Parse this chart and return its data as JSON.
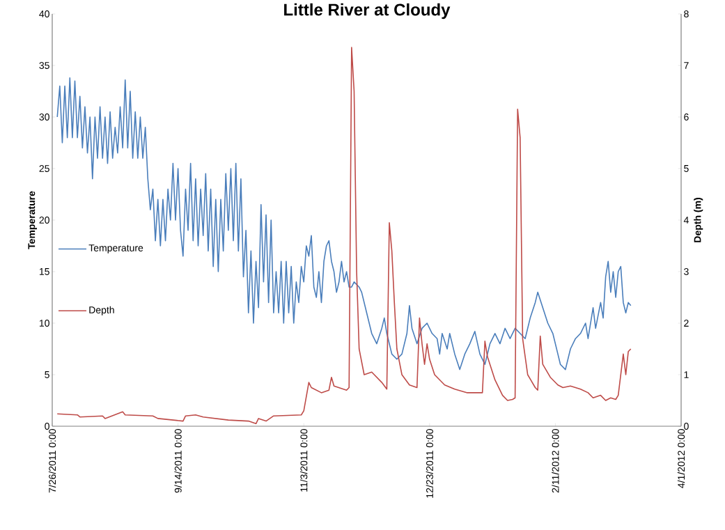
{
  "chart_data": {
    "type": "line",
    "title": "Little River at Cloudy",
    "ylabel": "Temperature",
    "y2label": "Depth (m)",
    "xlim": [
      "2011-07-26",
      "2012-04-01"
    ],
    "xticks": [
      {
        "value": "2011-07-26",
        "label": "7/26/2011 0:00"
      },
      {
        "value": "2011-09-14",
        "label": "9/14/2011 0:00"
      },
      {
        "value": "2011-11-03",
        "label": "11/3/2011 0:00"
      },
      {
        "value": "2011-12-23",
        "label": "12/23/2011 0:00"
      },
      {
        "value": "2012-02-11",
        "label": "2/11/2012 0:00"
      },
      {
        "value": "2012-04-01",
        "label": "4/1/2012 0:00"
      }
    ],
    "ylim": [
      0,
      40
    ],
    "yticks": [
      0,
      5,
      10,
      15,
      20,
      25,
      30,
      35,
      40
    ],
    "y2lim": [
      0,
      8
    ],
    "y2ticks": [
      0,
      1,
      2,
      3,
      4,
      5,
      6,
      7,
      8
    ],
    "legend": "left",
    "series": [
      {
        "name": "Temperature",
        "color": "#4a7ebb",
        "x": [
          "2011-07-28",
          "2011-07-29",
          "2011-07-30",
          "2011-07-31",
          "2011-08-01",
          "2011-08-02",
          "2011-08-03",
          "2011-08-04",
          "2011-08-05",
          "2011-08-06",
          "2011-08-07",
          "2011-08-08",
          "2011-08-09",
          "2011-08-10",
          "2011-08-11",
          "2011-08-12",
          "2011-08-13",
          "2011-08-14",
          "2011-08-15",
          "2011-08-16",
          "2011-08-17",
          "2011-08-18",
          "2011-08-19",
          "2011-08-20",
          "2011-08-21",
          "2011-08-22",
          "2011-08-23",
          "2011-08-24",
          "2011-08-25",
          "2011-08-26",
          "2011-08-27",
          "2011-08-28",
          "2011-08-29",
          "2011-08-30",
          "2011-08-31",
          "2011-09-01",
          "2011-09-02",
          "2011-09-03",
          "2011-09-04",
          "2011-09-05",
          "2011-09-06",
          "2011-09-07",
          "2011-09-08",
          "2011-09-09",
          "2011-09-10",
          "2011-09-11",
          "2011-09-12",
          "2011-09-13",
          "2011-09-14",
          "2011-09-15",
          "2011-09-16",
          "2011-09-17",
          "2011-09-18",
          "2011-09-19",
          "2011-09-20",
          "2011-09-21",
          "2011-09-22",
          "2011-09-23",
          "2011-09-24",
          "2011-09-25",
          "2011-09-26",
          "2011-09-27",
          "2011-09-28",
          "2011-09-29",
          "2011-09-30",
          "2011-10-01",
          "2011-10-02",
          "2011-10-03",
          "2011-10-04",
          "2011-10-05",
          "2011-10-06",
          "2011-10-07",
          "2011-10-08",
          "2011-10-09",
          "2011-10-10",
          "2011-10-11",
          "2011-10-12",
          "2011-10-13",
          "2011-10-14",
          "2011-10-15",
          "2011-10-16",
          "2011-10-17",
          "2011-10-18",
          "2011-10-19",
          "2011-10-20",
          "2011-10-21",
          "2011-10-22",
          "2011-10-23",
          "2011-10-24",
          "2011-10-25",
          "2011-10-26",
          "2011-10-27",
          "2011-10-28",
          "2011-10-29",
          "2011-10-30",
          "2011-10-31",
          "2011-11-01",
          "2011-11-02",
          "2011-11-03",
          "2011-11-04",
          "2011-11-05",
          "2011-11-06",
          "2011-11-07",
          "2011-11-08",
          "2011-11-09",
          "2011-11-10",
          "2011-11-11",
          "2011-11-12",
          "2011-11-13",
          "2011-11-14",
          "2011-11-15",
          "2011-11-16",
          "2011-11-17",
          "2011-11-18",
          "2011-11-19",
          "2011-11-20",
          "2011-11-21",
          "2011-11-22",
          "2011-11-23",
          "2011-11-25",
          "2011-11-26",
          "2011-11-28",
          "2011-11-30",
          "2011-12-02",
          "2011-12-04",
          "2011-12-05",
          "2011-12-06",
          "2011-12-08",
          "2011-12-10",
          "2011-12-12",
          "2011-12-14",
          "2011-12-15",
          "2011-12-16",
          "2011-12-18",
          "2011-12-20",
          "2011-12-22",
          "2011-12-24",
          "2011-12-26",
          "2011-12-27",
          "2011-12-28",
          "2011-12-30",
          "2011-12-31",
          "2012-01-02",
          "2012-01-04",
          "2012-01-06",
          "2012-01-08",
          "2012-01-10",
          "2012-01-12",
          "2012-01-14",
          "2012-01-16",
          "2012-01-18",
          "2012-01-20",
          "2012-01-22",
          "2012-01-24",
          "2012-01-26",
          "2012-01-28",
          "2012-01-30",
          "2012-02-01",
          "2012-02-03",
          "2012-02-04",
          "2012-02-06",
          "2012-02-08",
          "2012-02-10",
          "2012-02-12",
          "2012-02-13",
          "2012-02-15",
          "2012-02-17",
          "2012-02-19",
          "2012-02-21",
          "2012-02-23",
          "2012-02-24",
          "2012-02-26",
          "2012-02-27",
          "2012-02-29",
          "2012-03-01",
          "2012-03-02",
          "2012-03-03",
          "2012-03-04",
          "2012-03-05",
          "2012-03-06",
          "2012-03-07",
          "2012-03-08",
          "2012-03-09",
          "2012-03-10",
          "2012-03-11",
          "2012-03-12"
        ],
        "values": [
          30,
          33,
          27.5,
          33,
          28,
          33.8,
          28,
          33.5,
          28,
          32,
          27,
          31,
          26.5,
          30,
          24,
          30,
          26,
          31,
          26,
          30,
          25.5,
          30.5,
          26,
          29,
          26.5,
          31,
          27,
          33.6,
          27,
          32.5,
          26,
          30.5,
          26,
          30,
          26,
          29,
          24,
          21,
          23,
          18,
          22,
          17.5,
          22,
          18,
          23,
          20,
          25.5,
          20,
          25,
          19,
          16.5,
          23,
          19,
          25.5,
          18,
          24,
          17.5,
          23,
          18.5,
          24.5,
          17,
          23,
          15.5,
          22,
          15,
          22,
          17,
          24.5,
          19,
          25,
          18,
          25.5,
          17,
          24,
          14.5,
          19,
          11,
          17,
          10,
          16,
          11.5,
          21.5,
          14,
          20.5,
          12,
          20,
          11,
          15,
          11,
          16,
          10,
          16,
          11,
          15.5,
          10,
          14,
          12,
          15.5,
          14,
          17.5,
          16.5,
          18.5,
          13.5,
          12.5,
          15,
          12,
          16,
          17.5,
          18,
          16,
          15,
          13,
          14,
          16,
          14,
          15,
          13.5,
          13.5,
          14,
          13.5,
          13,
          11,
          9,
          8,
          9.5,
          10.5,
          9,
          7,
          6.5,
          7,
          9,
          11.7,
          9.5,
          8,
          9.5,
          10,
          9,
          8.5,
          7,
          9,
          7.5,
          9,
          7,
          5.5,
          7,
          8,
          9.2,
          7,
          6,
          8,
          9,
          8,
          9.5,
          8.5,
          9.5,
          9,
          8.5,
          10.5,
          12,
          13,
          11.5,
          10,
          9,
          7,
          6,
          5.5,
          7.5,
          8.5,
          9,
          10,
          8.5,
          11.5,
          9.5,
          12,
          10.5,
          14.5,
          16,
          13,
          15,
          12.5,
          15,
          15.5,
          12,
          11,
          12,
          11.7
        ]
      },
      {
        "name": "Depth",
        "color": "#be4b48",
        "axis": "y2",
        "x": [
          "2011-07-28",
          "2011-08-05",
          "2011-08-06",
          "2011-08-15",
          "2011-08-16",
          "2011-08-23",
          "2011-08-24",
          "2011-09-04",
          "2011-09-06",
          "2011-09-16",
          "2011-09-17",
          "2011-09-21",
          "2011-09-24",
          "2011-10-04",
          "2011-10-12",
          "2011-10-15",
          "2011-10-16",
          "2011-10-19",
          "2011-10-22",
          "2011-11-02",
          "2011-11-03",
          "2011-11-05",
          "2011-11-06",
          "2011-11-10",
          "2011-11-13",
          "2011-11-14",
          "2011-11-15",
          "2011-11-20",
          "2011-11-21",
          "2011-11-22",
          "2011-11-23",
          "2011-11-24",
          "2011-11-25",
          "2011-11-27",
          "2011-11-30",
          "2011-12-04",
          "2011-12-06",
          "2011-12-07",
          "2011-12-08",
          "2011-12-09",
          "2011-12-10",
          "2011-12-12",
          "2011-12-15",
          "2011-12-18",
          "2011-12-19",
          "2011-12-20",
          "2011-12-21",
          "2011-12-22",
          "2011-12-23",
          "2011-12-25",
          "2011-12-29",
          "2012-01-02",
          "2012-01-07",
          "2012-01-13",
          "2012-01-14",
          "2012-01-15",
          "2012-01-18",
          "2012-01-21",
          "2012-01-23",
          "2012-01-25",
          "2012-01-26",
          "2012-01-27",
          "2012-01-28",
          "2012-01-29",
          "2012-01-31",
          "2012-02-03",
          "2012-02-04",
          "2012-02-05",
          "2012-02-06",
          "2012-02-09",
          "2012-02-12",
          "2012-02-14",
          "2012-02-17",
          "2012-02-21",
          "2012-02-24",
          "2012-02-26",
          "2012-02-29",
          "2012-03-02",
          "2012-03-04",
          "2012-03-06",
          "2012-03-07",
          "2012-03-09",
          "2012-03-10",
          "2012-03-11",
          "2012-03-12"
        ],
        "values": [
          0.24,
          0.22,
          0.18,
          0.2,
          0.15,
          0.28,
          0.22,
          0.2,
          0.15,
          0.1,
          0.2,
          0.22,
          0.18,
          0.12,
          0.1,
          0.05,
          0.15,
          0.1,
          0.2,
          0.22,
          0.3,
          0.85,
          0.75,
          0.65,
          0.7,
          0.95,
          0.78,
          0.7,
          0.75,
          7.35,
          6.5,
          3,
          1.5,
          1,
          1.05,
          0.85,
          0.72,
          3.95,
          3.4,
          2.4,
          1.5,
          1,
          0.8,
          0.75,
          2.1,
          1.6,
          1.2,
          1.6,
          1.3,
          1,
          0.8,
          0.72,
          0.65,
          0.65,
          1.65,
          1.35,
          0.9,
          0.6,
          0.5,
          0.52,
          0.55,
          6.15,
          5.6,
          1.7,
          1,
          0.75,
          0.7,
          1.75,
          1.2,
          0.95,
          0.8,
          0.75,
          0.78,
          0.72,
          0.65,
          0.55,
          0.6,
          0.5,
          0.55,
          0.52,
          0.6,
          1.4,
          1,
          1.45,
          1.5
        ]
      }
    ]
  }
}
